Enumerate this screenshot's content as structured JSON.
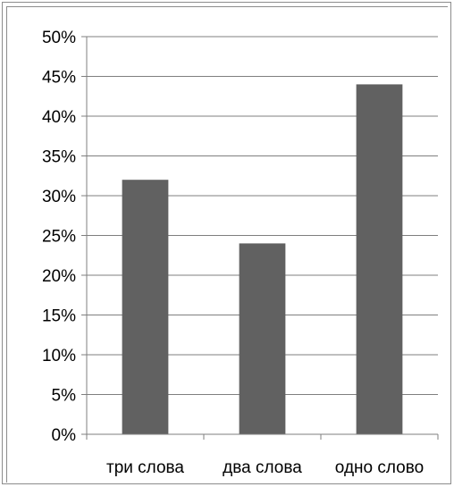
{
  "chart_data": {
    "type": "bar",
    "title": "",
    "xlabel": "",
    "ylabel": "",
    "categories": [
      "три слова",
      "два слова",
      "одно слово"
    ],
    "values": [
      32,
      24,
      44
    ],
    "ylim": [
      0,
      50
    ],
    "y_ticks": [
      "0%",
      "5%",
      "10%",
      "15%",
      "20%",
      "25%",
      "30%",
      "35%",
      "40%",
      "45%",
      "50%"
    ],
    "grid": true,
    "legend": "none",
    "colors": {
      "bar": "#616161",
      "grid": "#7f7f7f",
      "axis": "#7f7f7f"
    }
  }
}
